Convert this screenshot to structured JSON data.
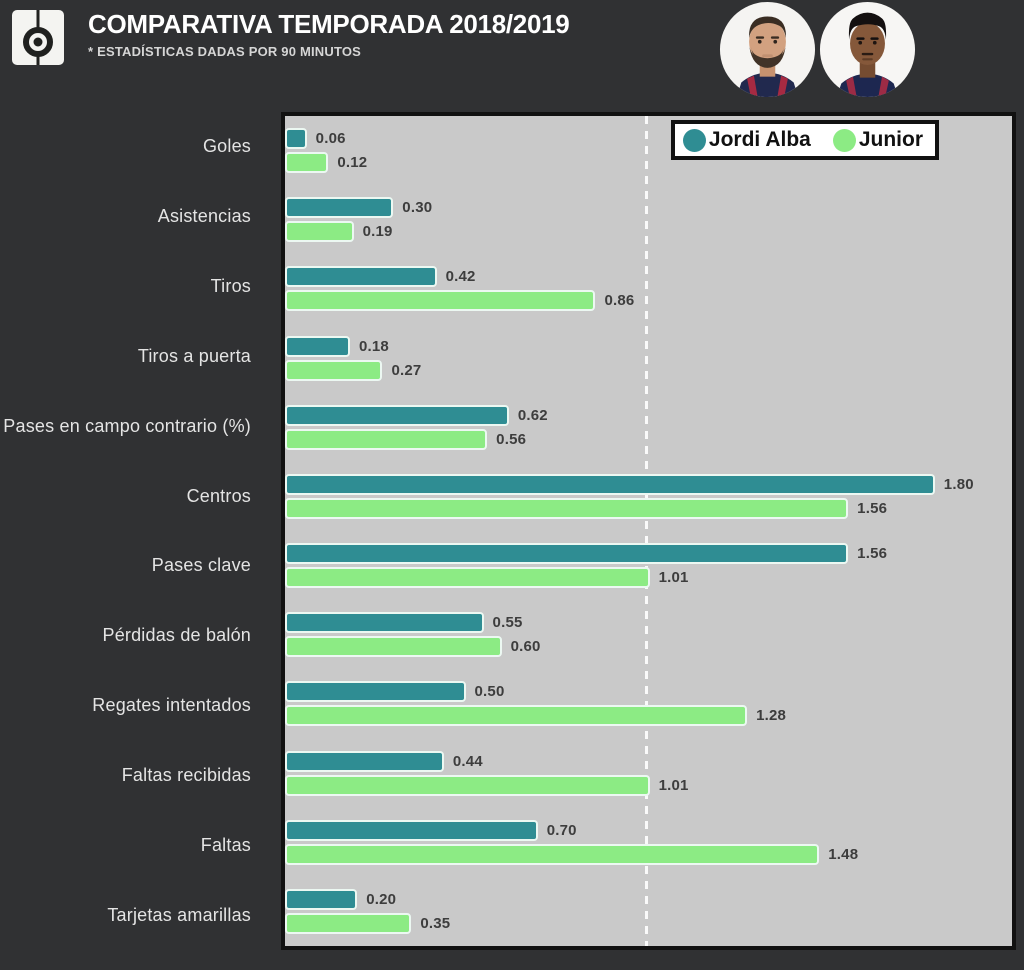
{
  "header": {
    "title": "COMPARATIVA TEMPORADA 2018/2019",
    "subtitle": "* ESTADÍSTICAS DADAS POR 90 MINUTOS",
    "logo_icon": "besoccer-pitch-badge"
  },
  "players": [
    {
      "name": "Jordi Alba",
      "avatar_icon": "jordi-alba-portrait"
    },
    {
      "name": "Junior",
      "avatar_icon": "junior-portrait"
    }
  ],
  "colors": {
    "background": "#303133",
    "panel": "#c9c9c9",
    "panel_border": "#111111",
    "jordi_alba": "#2f8d93",
    "junior": "#8ceb84",
    "bar_border": "#ecf8f2",
    "value_text": "#3d3d3d",
    "label_text": "#e4e4e4"
  },
  "chart_data": {
    "type": "bar",
    "orientation": "horizontal",
    "title": "COMPARATIVA TEMPORADA 2018/2019",
    "note": "* ESTADÍSTICAS DADAS POR 90 MINUTOS",
    "categories": [
      "Goles",
      "Asistencias",
      "Tiros",
      "Tiros a puerta",
      "Pases en campo contrario (%)",
      "Centros",
      "Pases clave",
      "Pérdidas de balón",
      "Regates intentados",
      "Faltas recibidas",
      "Faltas",
      "Tarjetas amarillas"
    ],
    "series": [
      {
        "name": "Jordi Alba",
        "color": "#2f8d93",
        "values": [
          0.06,
          0.3,
          0.42,
          0.18,
          0.62,
          1.8,
          1.56,
          0.55,
          0.5,
          0.44,
          0.7,
          0.2
        ]
      },
      {
        "name": "Junior",
        "color": "#8ceb84",
        "values": [
          0.12,
          0.19,
          0.86,
          0.27,
          0.56,
          1.56,
          1.01,
          0.6,
          1.28,
          1.01,
          1.48,
          0.35
        ]
      }
    ],
    "xlim": [
      0,
      2.0
    ],
    "reference_line": 1.0,
    "grid": false,
    "legend_position": "top-right",
    "value_labels": "2 decimals at bar end"
  }
}
